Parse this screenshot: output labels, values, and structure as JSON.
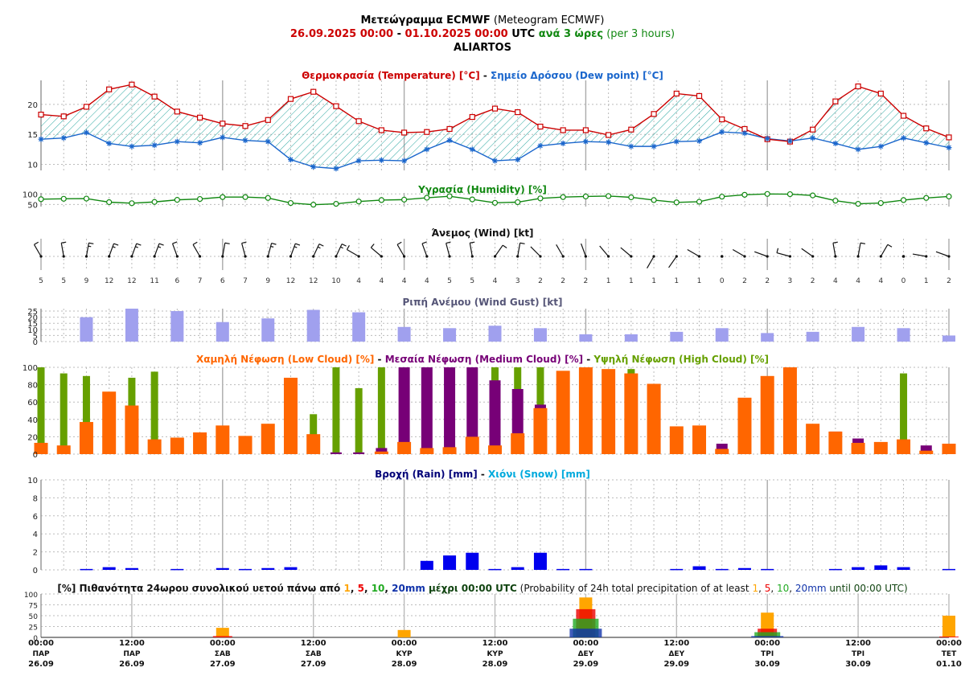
{
  "header": {
    "line1": {
      "bold": "Μετεώγραμμα ECMWF",
      "rest": " (Meteogram ECMWF)"
    },
    "line2": {
      "start": "26.09.2025 00:00",
      "dash": " - ",
      "end": "01.10.2025 00:00",
      "utc": " UTC ",
      "every_gr": "ανά 3 ώρες",
      "every_en": " (per 3 hours)"
    },
    "line3": "ALIARTOS"
  },
  "colors": {
    "temperature": "#cc0000",
    "dew_point": "#1a66cc",
    "humidity": "#118811",
    "wind_gust": "#a0a0ee",
    "low_cloud": "#ff6600",
    "medium_cloud": "#770077",
    "high_cloud": "#66a000",
    "rain": "#0000ee",
    "snow": "#00aadd",
    "title_rain": "#000077",
    "p1": "#ffa500",
    "p5": "#ee0000",
    "p10": "#22aa22",
    "p20": "#1133aa"
  },
  "chart_data": [
    {
      "type": "line",
      "title_parts": [
        {
          "text": "Θερμοκρασία (Temperature) [°C]",
          "color": "#cc0000"
        },
        {
          "text": " - ",
          "color": "#111111"
        },
        {
          "text": "Σημείο Δρόσου (Dew point) [°C]",
          "color": "#1a66cc"
        }
      ],
      "ylim": [
        9,
        24
      ],
      "y_ticks": [
        10,
        15,
        20
      ],
      "series": [
        {
          "name": "Temperature",
          "marker": "square",
          "values": [
            18.3,
            18.0,
            19.6,
            22.5,
            23.3,
            21.3,
            18.8,
            17.8,
            16.8,
            16.4,
            17.4,
            20.9,
            22.1,
            19.7,
            17.2,
            15.7,
            15.3,
            15.4,
            15.9,
            17.9,
            19.3,
            18.7,
            16.3,
            15.7,
            15.7,
            14.9,
            15.8,
            18.4,
            21.8,
            21.4,
            17.5,
            15.9,
            14.2,
            13.8,
            15.8,
            20.5,
            23.0,
            21.8,
            18.1,
            16.0,
            14.5
          ]
        },
        {
          "name": "Dew point",
          "marker": "star",
          "values": [
            14.2,
            14.4,
            15.3,
            13.5,
            13.0,
            13.2,
            13.8,
            13.6,
            14.5,
            14.0,
            13.8,
            10.8,
            9.6,
            9.3,
            10.6,
            10.7,
            10.6,
            12.5,
            14.0,
            12.5,
            10.6,
            10.8,
            13.1,
            13.5,
            13.8,
            13.7,
            13.0,
            13.0,
            13.8,
            13.9,
            15.4,
            15.2,
            14.3,
            13.9,
            14.4,
            13.5,
            12.5,
            13.0,
            14.4,
            13.6,
            12.8
          ]
        }
      ]
    },
    {
      "type": "line",
      "title_parts": [
        {
          "text": "Υγρασία (Humidity) [%]",
          "color": "#118811"
        }
      ],
      "ylim": [
        40,
        105
      ],
      "y_ticks": [
        50,
        100
      ],
      "series": [
        {
          "name": "Humidity",
          "marker": "circle",
          "values": [
            75,
            77,
            78,
            61,
            56,
            62,
            72,
            76,
            85,
            85,
            81,
            57,
            49,
            53,
            64,
            71,
            73,
            82,
            89,
            74,
            58,
            61,
            79,
            85,
            88,
            90,
            84,
            71,
            60,
            63,
            87,
            96,
            100,
            99,
            93,
            68,
            53,
            57,
            71,
            81,
            88
          ]
        }
      ]
    },
    {
      "type": "wind_barbs",
      "title_parts": [
        {
          "text": "Άνεμος (Wind) [kt]",
          "color": "#111111"
        }
      ],
      "speeds": [
        "5",
        "5",
        "9",
        "12",
        "12",
        "11",
        "6",
        "7",
        "6",
        "7",
        "9",
        "12",
        "12",
        "10",
        "4",
        "4",
        "4",
        "4",
        "5",
        "5",
        "4",
        "3",
        "2",
        "2",
        "2",
        "1",
        "1",
        "1",
        "1",
        "1",
        "0",
        "2",
        "2",
        "3",
        "2",
        "4",
        "4",
        "4",
        "0",
        "1",
        "2"
      ],
      "directions_deg": [
        330,
        350,
        10,
        20,
        20,
        20,
        340,
        330,
        10,
        345,
        15,
        20,
        25,
        25,
        300,
        310,
        330,
        340,
        345,
        350,
        35,
        10,
        315,
        330,
        340,
        320,
        310,
        210,
        215,
        300,
        0,
        300,
        290,
        285,
        305,
        350,
        10,
        30,
        0,
        280,
        290
      ]
    },
    {
      "type": "bar",
      "title_parts": [
        {
          "text": "Ριπή Ανέμου (Wind Gust) [kt]",
          "color": "#555577"
        }
      ],
      "ylim": [
        0,
        27
      ],
      "y_ticks": [
        0,
        5,
        10,
        15,
        20,
        25
      ],
      "series": [
        {
          "name": "Wind Gust",
          "values": [
            null,
            null,
            20,
            null,
            27,
            null,
            25,
            null,
            16,
            null,
            19,
            null,
            26,
            null,
            24,
            null,
            12,
            null,
            11,
            null,
            13,
            null,
            11,
            null,
            6,
            null,
            6,
            null,
            8,
            null,
            11,
            null,
            7,
            null,
            8,
            null,
            12,
            null,
            11,
            null,
            5
          ]
        }
      ]
    },
    {
      "type": "bar",
      "title_parts": [
        {
          "text": "Χαμηλή Νέφωση (Low Cloud) [%]",
          "color": "#ff6600"
        },
        {
          "text": " - ",
          "color": "#111111"
        },
        {
          "text": "Μεσαία Νέφωση (Medium Cloud) [%]",
          "color": "#770077"
        },
        {
          "text": " - ",
          "color": "#111111"
        },
        {
          "text": "Υψηλή Νέφωση (High Cloud) [%]",
          "color": "#66a000"
        }
      ],
      "ylim": [
        0,
        100
      ],
      "y_ticks": [
        0,
        20,
        40,
        60,
        80,
        100
      ],
      "series": [
        {
          "name": "Low Cloud",
          "values": [
            13,
            10,
            37,
            72,
            56,
            17,
            19,
            25,
            33,
            21,
            35,
            88,
            23,
            0,
            0,
            3,
            14,
            7,
            8,
            20,
            10,
            24,
            53,
            96,
            100,
            98,
            93,
            81,
            32,
            33,
            6,
            65,
            90,
            100,
            35,
            26,
            13,
            14,
            17,
            4,
            12
          ]
        },
        {
          "name": "Medium Cloud",
          "values": [
            0,
            0,
            0,
            0,
            0,
            0,
            0,
            0,
            0,
            0,
            0,
            0,
            0,
            2,
            2,
            7,
            100,
            100,
            100,
            100,
            85,
            75,
            57,
            0,
            0,
            0,
            0,
            0,
            0,
            0,
            12,
            0,
            0,
            0,
            0,
            26,
            18,
            0,
            0,
            10,
            0
          ]
        },
        {
          "name": "High Cloud",
          "values": [
            100,
            93,
            90,
            0,
            88,
            95,
            0,
            0,
            0,
            0,
            0,
            0,
            46,
            100,
            76,
            100,
            0,
            0,
            0,
            0,
            100,
            100,
            100,
            0,
            0,
            0,
            98,
            0,
            0,
            0,
            0,
            0,
            0,
            0,
            0,
            0,
            0,
            0,
            93,
            0,
            0
          ]
        }
      ]
    },
    {
      "type": "bar",
      "title_parts": [
        {
          "text": "Βροχή (Rain) [mm]",
          "color": "#000077"
        },
        {
          "text": " - ",
          "color": "#111111"
        },
        {
          "text": "Χιόνι (Snow) [mm]",
          "color": "#00aadd"
        }
      ],
      "ylim": [
        0,
        10
      ],
      "y_ticks": [
        0,
        2,
        4,
        6,
        8,
        10
      ],
      "series": [
        {
          "name": "Rain",
          "values": [
            0,
            0,
            0.1,
            0.3,
            0.2,
            0,
            0.1,
            0,
            0.2,
            0.1,
            0.2,
            0.3,
            0,
            0,
            0,
            0,
            0,
            1.0,
            1.6,
            1.9,
            0.1,
            0.3,
            1.9,
            0.1,
            0.1,
            0,
            0,
            0,
            0.1,
            0.4,
            0.1,
            0.2,
            0.1,
            0,
            0,
            0.1,
            0.3,
            0.5,
            0.3,
            0,
            0.1
          ]
        },
        {
          "name": "Snow",
          "values": [
            0,
            0,
            0,
            0,
            0,
            0,
            0,
            0,
            0,
            0,
            0,
            0,
            0,
            0,
            0,
            0,
            0,
            0,
            0,
            0,
            0,
            0,
            0,
            0,
            0,
            0,
            0,
            0,
            0,
            0,
            0,
            0,
            0,
            0,
            0,
            0,
            0,
            0,
            0,
            0,
            0
          ]
        }
      ]
    },
    {
      "type": "bar",
      "title_parts": [
        {
          "text": "[%] Πιθανότητα 24ωρου συνολικού υετού πάνω από ",
          "color": "#111111",
          "bold": true
        },
        {
          "text": "1",
          "color": "#ffa500",
          "bold": true
        },
        {
          "text": ", ",
          "color": "#111111",
          "bold": true
        },
        {
          "text": "5",
          "color": "#ee0000",
          "bold": true
        },
        {
          "text": ", ",
          "color": "#111111",
          "bold": true
        },
        {
          "text": "10",
          "color": "#22aa22",
          "bold": true
        },
        {
          "text": ", ",
          "color": "#111111",
          "bold": true
        },
        {
          "text": "20mm",
          "color": "#1133aa",
          "bold": true
        },
        {
          "text": " μέχρι 00:00 UTC",
          "color": "#114411",
          "bold": true
        },
        {
          "text": " (Probability of 24h total precipitation of at least ",
          "color": "#111111"
        },
        {
          "text": "1",
          "color": "#ffa500"
        },
        {
          "text": ", ",
          "color": "#111111"
        },
        {
          "text": "5",
          "color": "#ee0000"
        },
        {
          "text": ", ",
          "color": "#111111"
        },
        {
          "text": "10",
          "color": "#22aa22"
        },
        {
          "text": ", ",
          "color": "#111111"
        },
        {
          "text": "20mm",
          "color": "#1133aa"
        },
        {
          "text": " until 00:00 UTC)",
          "color": "#114411"
        }
      ],
      "ylim": [
        0,
        100
      ],
      "y_ticks": [
        0,
        25,
        50,
        75,
        100
      ],
      "time_steps": [
        8,
        16,
        24,
        32,
        40
      ],
      "series": [
        {
          "name": "1mm",
          "values": [
            22,
            17,
            92,
            57,
            50
          ]
        },
        {
          "name": "5mm",
          "values": [
            3,
            0,
            65,
            20,
            2
          ]
        },
        {
          "name": "10mm",
          "values": [
            0,
            0,
            43,
            12,
            0
          ]
        },
        {
          "name": "20mm",
          "values": [
            0,
            0,
            20,
            3,
            0
          ]
        }
      ]
    }
  ],
  "x_axis": {
    "labels": [
      {
        "step": 0,
        "time": "00:00",
        "day": "ΠΑΡ",
        "date": "26.09"
      },
      {
        "step": 4,
        "time": "12:00",
        "day": "ΠΑΡ",
        "date": "26.09"
      },
      {
        "step": 8,
        "time": "00:00",
        "day": "ΣΑΒ",
        "date": "27.09"
      },
      {
        "step": 12,
        "time": "12:00",
        "day": "ΣΑΒ",
        "date": "27.09"
      },
      {
        "step": 16,
        "time": "00:00",
        "day": "ΚΥΡ",
        "date": "28.09"
      },
      {
        "step": 20,
        "time": "12:00",
        "day": "ΚΥΡ",
        "date": "28.09"
      },
      {
        "step": 24,
        "time": "00:00",
        "day": "ΔΕΥ",
        "date": "29.09"
      },
      {
        "step": 28,
        "time": "12:00",
        "day": "ΔΕΥ",
        "date": "29.09"
      },
      {
        "step": 32,
        "time": "00:00",
        "day": "ΤΡΙ",
        "date": "30.09"
      },
      {
        "step": 36,
        "time": "12:00",
        "day": "ΤΡΙ",
        "date": "30.09"
      },
      {
        "step": 40,
        "time": "00:00",
        "day": "ΤΕΤ",
        "date": "01.10"
      }
    ]
  }
}
